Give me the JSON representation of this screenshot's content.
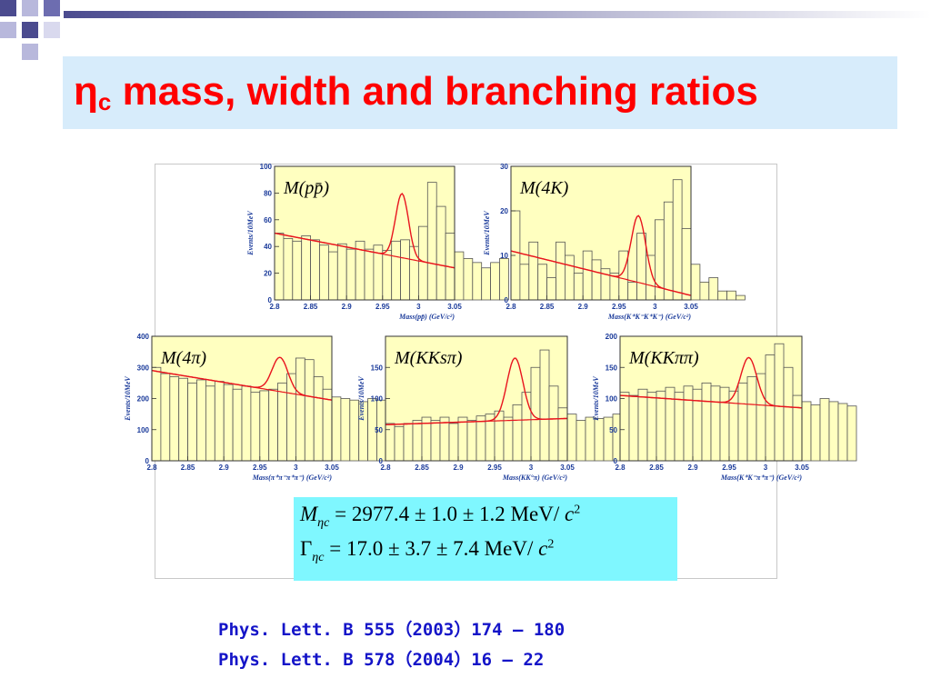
{
  "slide": {
    "title_main": "mass, width and branching ratios",
    "title_eta": "η",
    "title_sub": "c",
    "results": {
      "mass_symbol": "M",
      "mass_sub": "ηc",
      "mass_value": "= 2977.4 ± 1.0 ± 1.2 MeV/ ",
      "width_symbol": "Γ",
      "width_sub": "ηc",
      "width_value": "= 17.0 ± 3.7 ± 7.4 MeV/ ",
      "c_symbol": "c",
      "c_exp": "2"
    },
    "references": [
      "Phys. Lett. B 555（2003）174 – 180",
      "Phys. Lett. B 578（2004）16 – 22"
    ],
    "colors": {
      "title": "#ff0000",
      "result_box": "#7ff7ff",
      "title_box": "#d7ecfb",
      "hist_fill": "#ffffc0",
      "fit": "#e8141e",
      "axes_text": "#1a3a9a",
      "references": "#1414c8"
    }
  },
  "chart_data": [
    {
      "type": "bar",
      "label": "M(pp̄)",
      "ylabel": "Events/10MeV",
      "xlabel": "Mass(pp̄)   (GeV/c²)",
      "xlim": [
        2.8,
        3.05
      ],
      "ylim": [
        0,
        100
      ],
      "xticks": [
        "2.8",
        "2.85",
        "2.9",
        "2.95",
        "3",
        "3.05"
      ],
      "yticks": [
        "0",
        "20",
        "40",
        "60",
        "80",
        "100"
      ],
      "bin_width": 0.0125,
      "values": [
        50,
        46,
        44,
        48,
        45,
        41,
        36,
        42,
        38,
        44,
        38,
        41,
        37,
        44,
        45,
        40,
        55,
        88,
        70,
        50,
        36,
        31,
        28,
        24,
        28,
        31
      ],
      "fit_peak": 2.977,
      "fit_width": 0.009,
      "fit_amp": 48,
      "bg_start": 50,
      "bg_end": 24
    },
    {
      "type": "bar",
      "label": "M(4K)",
      "ylabel": "Events/10MeV",
      "xlabel": "Mass(K⁺K⁻K⁺K⁻)   (GeV/c²)",
      "xlim": [
        2.8,
        3.05
      ],
      "ylim": [
        0,
        30
      ],
      "xticks": [
        "2.8",
        "2.85",
        "2.9",
        "2.95",
        "3",
        "3.05"
      ],
      "yticks": [
        "0",
        "10",
        "20",
        "30"
      ],
      "bin_width": 0.0125,
      "values": [
        20,
        8,
        13,
        8,
        5,
        13,
        10,
        6,
        11,
        9,
        7,
        6,
        11,
        4,
        15,
        10,
        18,
        22,
        27,
        16,
        8,
        4,
        5,
        2,
        2,
        1
      ],
      "fit_peak": 2.977,
      "fit_width": 0.01,
      "fit_amp": 15,
      "bg_start": 11,
      "bg_end": 1
    },
    {
      "type": "bar",
      "label": "M(4π)",
      "ylabel": "Events/10MeV",
      "xlabel": "Mass(π⁺π⁻π⁺π⁻)   (GeV/c²)",
      "xlim": [
        2.8,
        3.05
      ],
      "ylim": [
        0,
        400
      ],
      "xticks": [
        "2.8",
        "2.85",
        "2.9",
        "2.95",
        "3",
        "3.05"
      ],
      "yticks": [
        "0",
        "100",
        "200",
        "300",
        "400"
      ],
      "bin_width": 0.0125,
      "values": [
        300,
        280,
        270,
        265,
        250,
        260,
        240,
        255,
        245,
        230,
        240,
        220,
        225,
        230,
        250,
        280,
        330,
        325,
        270,
        230,
        205,
        200,
        195,
        190,
        200,
        195
      ],
      "fit_peak": 2.978,
      "fit_width": 0.011,
      "fit_amp": 110,
      "bg_start": 290,
      "bg_end": 195
    },
    {
      "type": "bar",
      "label": "M(KKsπ)",
      "ylabel": "Events/10MeV",
      "xlabel": "Mass(KK°π)   (GeV/c²)",
      "xlim": [
        2.8,
        3.05
      ],
      "ylim": [
        0,
        200
      ],
      "xticks": [
        "2.8",
        "2.85",
        "2.9",
        "2.95",
        "3",
        "3.05"
      ],
      "yticks": [
        "0",
        "50",
        "100",
        "150"
      ],
      "bin_width": 0.0125,
      "values": [
        60,
        55,
        60,
        65,
        70,
        65,
        70,
        60,
        70,
        65,
        72,
        75,
        80,
        70,
        90,
        110,
        150,
        178,
        120,
        85,
        75,
        65,
        70,
        68,
        70,
        75
      ],
      "fit_peak": 2.978,
      "fit_width": 0.011,
      "fit_amp": 100,
      "bg_start": 58,
      "bg_end": 68
    },
    {
      "type": "bar",
      "label": "M(KKππ)",
      "ylabel": "Events/10MeV",
      "xlabel": "Mass(K⁺K⁻π⁺π⁻)   (GeV/c²)",
      "xlim": [
        2.8,
        3.05
      ],
      "ylim": [
        0,
        200
      ],
      "xticks": [
        "2.8",
        "2.85",
        "2.9",
        "2.95",
        "3",
        "3.05"
      ],
      "yticks": [
        "0",
        "50",
        "100",
        "150",
        "200"
      ],
      "bin_width": 0.0125,
      "values": [
        110,
        105,
        115,
        110,
        112,
        118,
        110,
        120,
        115,
        125,
        120,
        118,
        112,
        125,
        135,
        140,
        170,
        188,
        150,
        105,
        95,
        90,
        100,
        95,
        92,
        88
      ],
      "fit_peak": 2.977,
      "fit_width": 0.011,
      "fit_amp": 75,
      "bg_start": 105,
      "bg_end": 85
    }
  ]
}
